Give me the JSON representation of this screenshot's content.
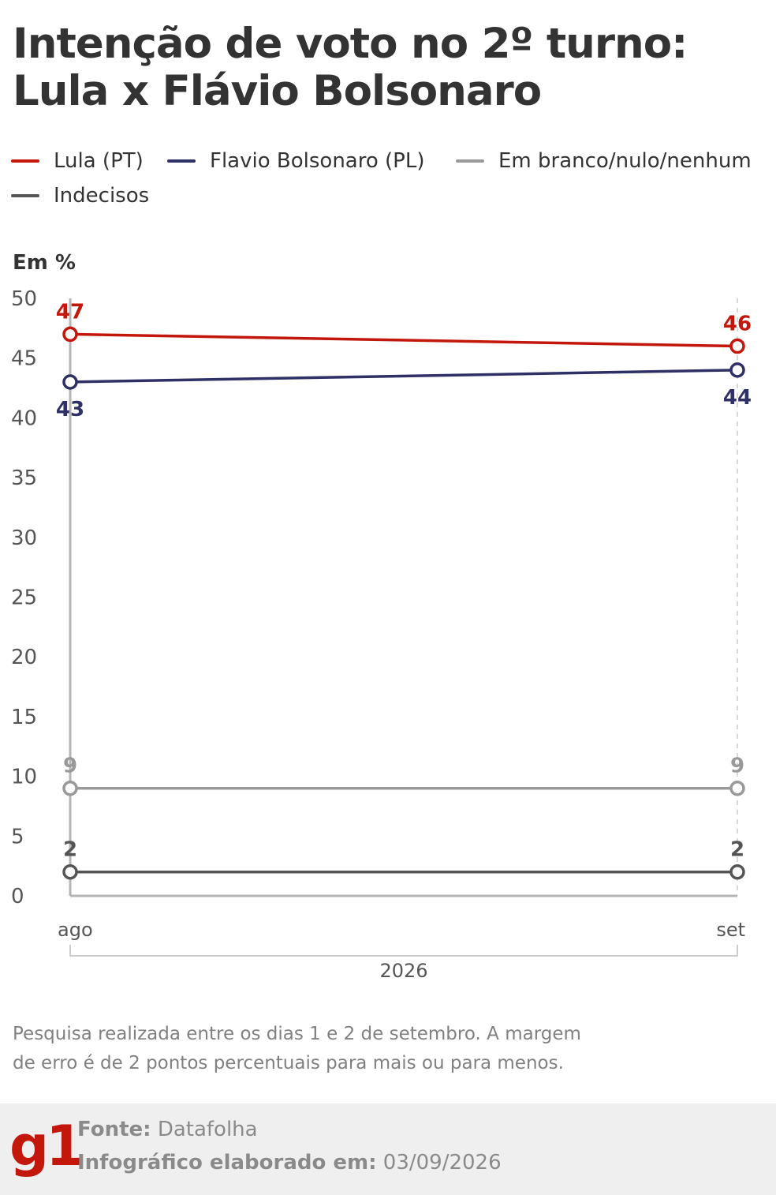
{
  "title_lines": [
    "Intenção de voto no 2º turno:",
    "Lula x Flávio Bolsonaro"
  ],
  "legend": [
    {
      "label": "Lula (PT)",
      "color": "#c4170c"
    },
    {
      "label": "Flavio Bolsonaro (PL)",
      "color": "#2e3066"
    },
    {
      "label": "Em branco/nulo/nenhum",
      "color": "#999999"
    },
    {
      "label": "Indecisos",
      "color": "#555555"
    }
  ],
  "unit_label": "Em %",
  "chart_data": {
    "type": "line",
    "x": [
      "ago",
      "set"
    ],
    "x_group_label": "2026",
    "ylim": [
      0,
      50
    ],
    "yticks": [
      0,
      5,
      10,
      15,
      20,
      25,
      30,
      35,
      40,
      45,
      50
    ],
    "series": [
      {
        "name": "Lula (PT)",
        "color": "#c4170c",
        "values": [
          47,
          46
        ],
        "label_position": "above"
      },
      {
        "name": "Flavio Bolsonaro (PL)",
        "color": "#2e3066",
        "values": [
          43,
          44
        ],
        "label_position": "below"
      },
      {
        "name": "Em branco/nulo/nenhum",
        "color": "#999999",
        "values": [
          9,
          9
        ],
        "label_position": "above"
      },
      {
        "name": "Indecisos",
        "color": "#555555",
        "values": [
          2,
          2
        ],
        "label_position": "above"
      }
    ]
  },
  "note_lines": [
    "Pesquisa realizada entre os dias 1 e 2 de setembro. A margem",
    "de erro é de 2 pontos percentuais para mais ou para menos."
  ],
  "footer": {
    "logo": "g1",
    "source_label": "Fonte:",
    "source_value": "Datafolha",
    "date_label": "Infográfico elaborado em:",
    "date_value": "03/09/2026"
  }
}
